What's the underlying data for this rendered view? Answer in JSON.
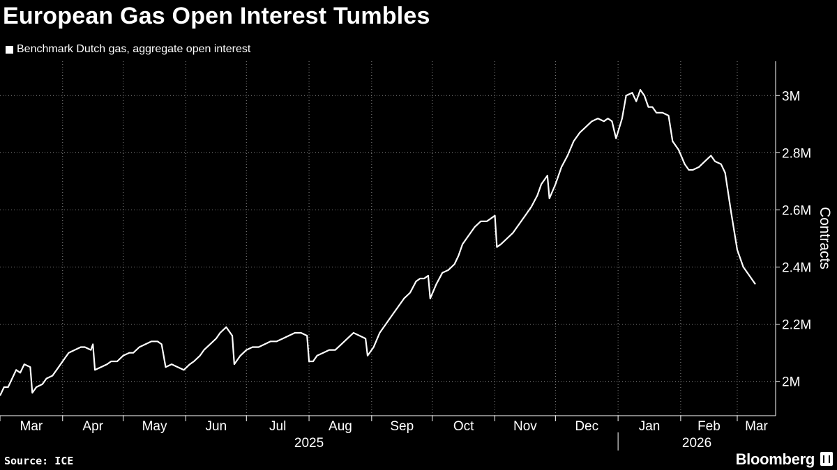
{
  "title": "European Gas Open Interest Tumbles",
  "legend": {
    "label": "Benchmark Dutch gas, aggregate open interest",
    "color": "#ffffff"
  },
  "source": "Source: ICE",
  "brand": "Bloomberg",
  "colors": {
    "background": "#000000",
    "line": "#ffffff",
    "grid": "#8a8a8a"
  },
  "chart_data": {
    "type": "line",
    "title": "European Gas Open Interest Tumbles",
    "ylabel": "Contracts",
    "ylim": [
      1.88,
      3.12
    ],
    "yticks": [
      2.0,
      2.2,
      2.4,
      2.6,
      2.8,
      3.0
    ],
    "ytick_labels": [
      "2M",
      "2.2M",
      "2.4M",
      "2.6M",
      "2.8M",
      "3M"
    ],
    "y_unit": "million contracts",
    "xlim": [
      "2025-03-01",
      "2026-03-20"
    ],
    "grid": true,
    "legend_position": "top-left",
    "months": [
      {
        "label": "Mar",
        "date": "2025-03-01"
      },
      {
        "label": "Apr",
        "date": "2025-04-01"
      },
      {
        "label": "May",
        "date": "2025-05-01"
      },
      {
        "label": "Jun",
        "date": "2025-06-01"
      },
      {
        "label": "Jul",
        "date": "2025-07-01"
      },
      {
        "label": "Aug",
        "date": "2025-08-01"
      },
      {
        "label": "Sep",
        "date": "2025-09-01"
      },
      {
        "label": "Oct",
        "date": "2025-10-01"
      },
      {
        "label": "Nov",
        "date": "2025-11-01"
      },
      {
        "label": "Dec",
        "date": "2025-12-01"
      },
      {
        "label": "Jan",
        "date": "2026-01-01"
      },
      {
        "label": "Feb",
        "date": "2026-02-01"
      },
      {
        "label": "Mar",
        "date": "2026-03-01"
      }
    ],
    "years": [
      {
        "label": "2025",
        "from": "2025-03-01",
        "to": "2026-01-01"
      },
      {
        "label": "2026",
        "from": "2026-01-01",
        "to": "2026-03-20"
      }
    ],
    "series": [
      {
        "color": "#ffffff",
        "points": [
          [
            "2025-03-01",
            1.95
          ],
          [
            "2025-03-03",
            1.98
          ],
          [
            "2025-03-05",
            1.98
          ],
          [
            "2025-03-07",
            2.01
          ],
          [
            "2025-03-09",
            2.04
          ],
          [
            "2025-03-11",
            2.03
          ],
          [
            "2025-03-13",
            2.06
          ],
          [
            "2025-03-16",
            2.05
          ],
          [
            "2025-03-17",
            1.96
          ],
          [
            "2025-03-19",
            1.98
          ],
          [
            "2025-03-22",
            1.99
          ],
          [
            "2025-03-24",
            2.01
          ],
          [
            "2025-03-27",
            2.02
          ],
          [
            "2025-03-30",
            2.05
          ],
          [
            "2025-04-02",
            2.08
          ],
          [
            "2025-04-04",
            2.1
          ],
          [
            "2025-04-07",
            2.11
          ],
          [
            "2025-04-10",
            2.12
          ],
          [
            "2025-04-12",
            2.12
          ],
          [
            "2025-04-15",
            2.11
          ],
          [
            "2025-04-16",
            2.13
          ],
          [
            "2025-04-17",
            2.04
          ],
          [
            "2025-04-20",
            2.05
          ],
          [
            "2025-04-23",
            2.06
          ],
          [
            "2025-04-25",
            2.07
          ],
          [
            "2025-04-28",
            2.07
          ],
          [
            "2025-05-01",
            2.09
          ],
          [
            "2025-05-04",
            2.1
          ],
          [
            "2025-05-06",
            2.1
          ],
          [
            "2025-05-09",
            2.12
          ],
          [
            "2025-05-12",
            2.13
          ],
          [
            "2025-05-15",
            2.14
          ],
          [
            "2025-05-18",
            2.14
          ],
          [
            "2025-05-20",
            2.13
          ],
          [
            "2025-05-22",
            2.05
          ],
          [
            "2025-05-25",
            2.06
          ],
          [
            "2025-05-28",
            2.05
          ],
          [
            "2025-05-31",
            2.04
          ],
          [
            "2025-06-03",
            2.06
          ],
          [
            "2025-06-05",
            2.07
          ],
          [
            "2025-06-08",
            2.09
          ],
          [
            "2025-06-10",
            2.11
          ],
          [
            "2025-06-13",
            2.13
          ],
          [
            "2025-06-16",
            2.15
          ],
          [
            "2025-06-18",
            2.17
          ],
          [
            "2025-06-21",
            2.19
          ],
          [
            "2025-06-24",
            2.16
          ],
          [
            "2025-06-25",
            2.06
          ],
          [
            "2025-06-28",
            2.09
          ],
          [
            "2025-07-01",
            2.11
          ],
          [
            "2025-07-04",
            2.12
          ],
          [
            "2025-07-07",
            2.12
          ],
          [
            "2025-07-10",
            2.13
          ],
          [
            "2025-07-13",
            2.14
          ],
          [
            "2025-07-16",
            2.14
          ],
          [
            "2025-07-19",
            2.15
          ],
          [
            "2025-07-22",
            2.16
          ],
          [
            "2025-07-25",
            2.17
          ],
          [
            "2025-07-28",
            2.17
          ],
          [
            "2025-07-31",
            2.16
          ],
          [
            "2025-08-01",
            2.07
          ],
          [
            "2025-08-03",
            2.07
          ],
          [
            "2025-08-05",
            2.09
          ],
          [
            "2025-08-08",
            2.1
          ],
          [
            "2025-08-11",
            2.11
          ],
          [
            "2025-08-14",
            2.11
          ],
          [
            "2025-08-17",
            2.13
          ],
          [
            "2025-08-20",
            2.15
          ],
          [
            "2025-08-23",
            2.17
          ],
          [
            "2025-08-26",
            2.16
          ],
          [
            "2025-08-29",
            2.15
          ],
          [
            "2025-08-30",
            2.09
          ],
          [
            "2025-09-02",
            2.12
          ],
          [
            "2025-09-05",
            2.17
          ],
          [
            "2025-09-08",
            2.2
          ],
          [
            "2025-09-11",
            2.23
          ],
          [
            "2025-09-14",
            2.26
          ],
          [
            "2025-09-17",
            2.29
          ],
          [
            "2025-09-20",
            2.31
          ],
          [
            "2025-09-23",
            2.35
          ],
          [
            "2025-09-25",
            2.36
          ],
          [
            "2025-09-27",
            2.36
          ],
          [
            "2025-09-29",
            2.37
          ],
          [
            "2025-09-30",
            2.29
          ],
          [
            "2025-10-03",
            2.34
          ],
          [
            "2025-10-06",
            2.38
          ],
          [
            "2025-10-09",
            2.39
          ],
          [
            "2025-10-12",
            2.41
          ],
          [
            "2025-10-14",
            2.44
          ],
          [
            "2025-10-16",
            2.48
          ],
          [
            "2025-10-19",
            2.51
          ],
          [
            "2025-10-22",
            2.54
          ],
          [
            "2025-10-25",
            2.56
          ],
          [
            "2025-10-28",
            2.56
          ],
          [
            "2025-10-30",
            2.57
          ],
          [
            "2025-11-01",
            2.58
          ],
          [
            "2025-11-02",
            2.47
          ],
          [
            "2025-11-04",
            2.48
          ],
          [
            "2025-11-07",
            2.5
          ],
          [
            "2025-11-10",
            2.52
          ],
          [
            "2025-11-13",
            2.55
          ],
          [
            "2025-11-16",
            2.58
          ],
          [
            "2025-11-19",
            2.61
          ],
          [
            "2025-11-22",
            2.65
          ],
          [
            "2025-11-24",
            2.69
          ],
          [
            "2025-11-27",
            2.72
          ],
          [
            "2025-11-28",
            2.64
          ],
          [
            "2025-12-01",
            2.69
          ],
          [
            "2025-12-04",
            2.75
          ],
          [
            "2025-12-07",
            2.79
          ],
          [
            "2025-12-10",
            2.84
          ],
          [
            "2025-12-13",
            2.87
          ],
          [
            "2025-12-16",
            2.89
          ],
          [
            "2025-12-19",
            2.91
          ],
          [
            "2025-12-22",
            2.92
          ],
          [
            "2025-12-25",
            2.91
          ],
          [
            "2025-12-27",
            2.92
          ],
          [
            "2025-12-29",
            2.91
          ],
          [
            "2025-12-31",
            2.85
          ],
          [
            "2026-01-03",
            2.92
          ],
          [
            "2026-01-05",
            3.0
          ],
          [
            "2026-01-08",
            3.01
          ],
          [
            "2026-01-10",
            2.98
          ],
          [
            "2026-01-12",
            3.02
          ],
          [
            "2026-01-14",
            3.0
          ],
          [
            "2026-01-16",
            2.96
          ],
          [
            "2026-01-18",
            2.96
          ],
          [
            "2026-01-20",
            2.94
          ],
          [
            "2026-01-23",
            2.94
          ],
          [
            "2026-01-26",
            2.93
          ],
          [
            "2026-01-28",
            2.84
          ],
          [
            "2026-01-31",
            2.81
          ],
          [
            "2026-02-03",
            2.76
          ],
          [
            "2026-02-05",
            2.74
          ],
          [
            "2026-02-07",
            2.74
          ],
          [
            "2026-02-10",
            2.75
          ],
          [
            "2026-02-13",
            2.77
          ],
          [
            "2026-02-16",
            2.79
          ],
          [
            "2026-02-18",
            2.77
          ],
          [
            "2026-02-21",
            2.76
          ],
          [
            "2026-02-23",
            2.73
          ],
          [
            "2026-02-26",
            2.59
          ],
          [
            "2026-03-01",
            2.46
          ],
          [
            "2026-03-04",
            2.4
          ],
          [
            "2026-03-07",
            2.37
          ],
          [
            "2026-03-10",
            2.34
          ]
        ]
      }
    ]
  }
}
